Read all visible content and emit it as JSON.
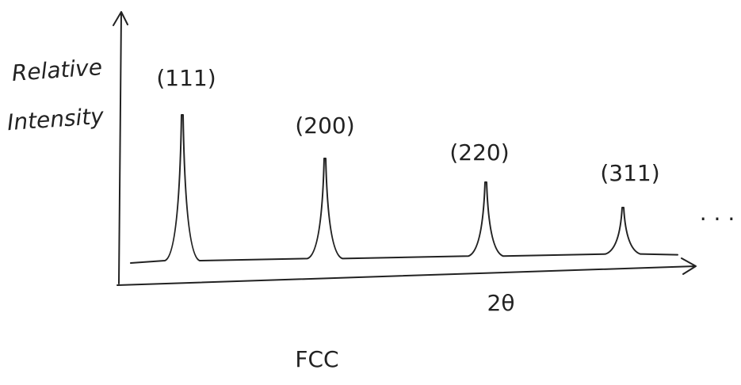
{
  "y_axis_label": {
    "line1": "Relative",
    "line2": "Intensity"
  },
  "x_axis_label": "2θ",
  "peaks": [
    {
      "label": "(111)"
    },
    {
      "label": "(200)"
    },
    {
      "label": "(220)"
    },
    {
      "label": "(311)"
    }
  ],
  "continuation": "· · ·",
  "caption": "FCC"
}
